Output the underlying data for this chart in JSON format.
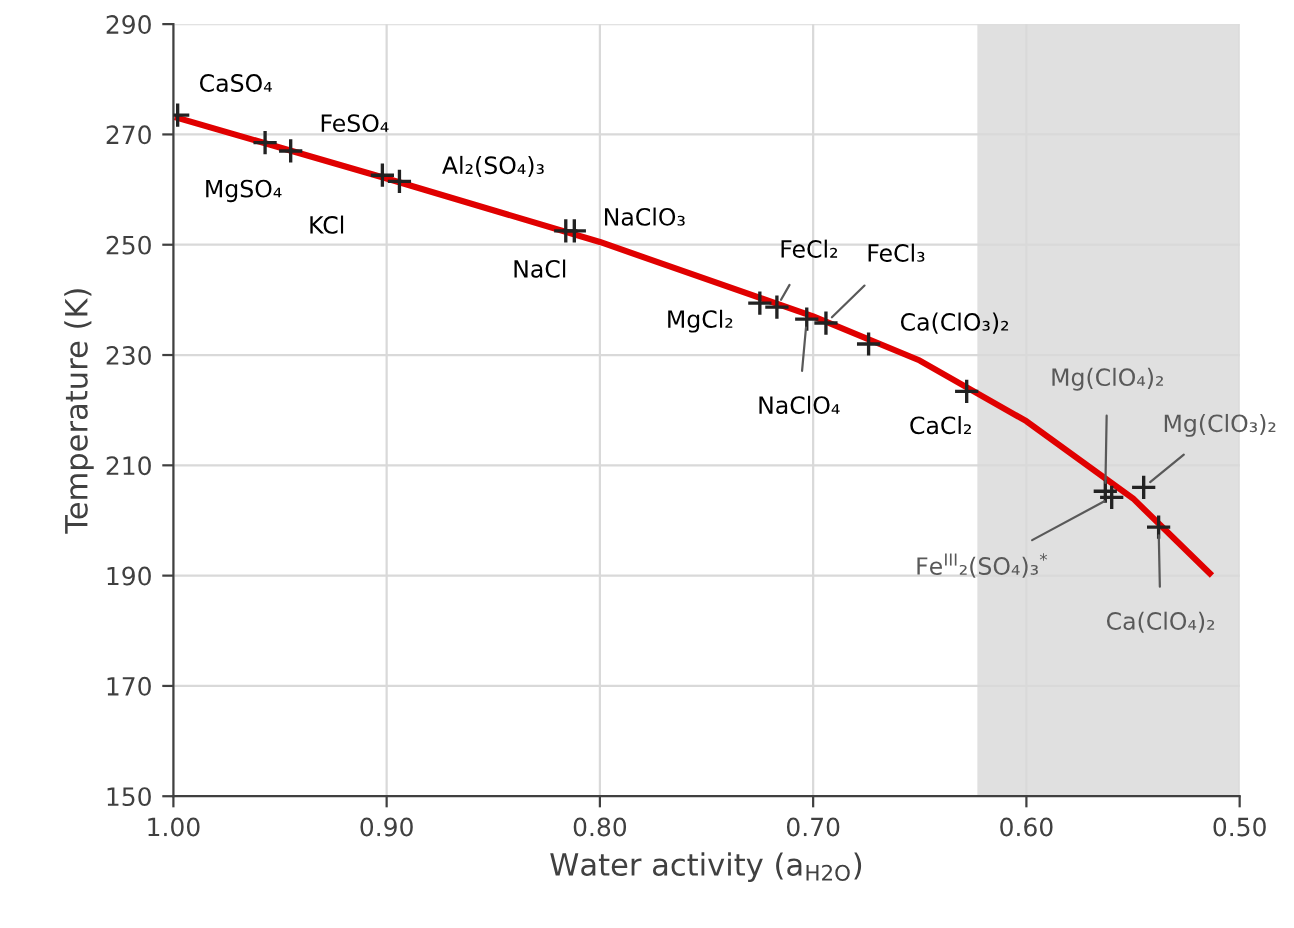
{
  "chart_data": {
    "type": "line",
    "xlabel": "Water activity (a$_{H2O}$)",
    "ylabel": "Temperature (K)",
    "xlim": [
      1.0,
      0.5
    ],
    "xticks": [
      {
        "value": 1.0,
        "label": "1.00"
      },
      {
        "value": 0.9,
        "label": "0.90"
      },
      {
        "value": 0.8,
        "label": "0.80"
      },
      {
        "value": 0.7,
        "label": "0.70"
      },
      {
        "value": 0.6,
        "label": "0.60"
      },
      {
        "value": 0.5,
        "label": "0.50"
      }
    ],
    "ylim": [
      150,
      290
    ],
    "yticks": [
      150,
      170,
      190,
      210,
      230,
      250,
      270,
      290
    ],
    "grid": true,
    "bands": [
      {
        "axis": "x",
        "from": 0.623,
        "to": 0.5,
        "color": "#e0e0e0"
      }
    ],
    "series": [
      {
        "color": "#e00000",
        "marker": "none",
        "x": [
          0.998,
          0.9,
          0.8,
          0.7,
          0.65,
          0.6,
          0.55,
          0.514
        ],
        "values": [
          273,
          262,
          250.5,
          237,
          229,
          218,
          204,
          190.4
        ]
      },
      {
        "type": "scatter",
        "color": "#222222",
        "marker": "cross",
        "x": [
          0.998,
          0.957,
          0.945,
          0.902,
          0.894,
          0.816,
          0.812,
          0.725,
          0.717,
          0.703,
          0.694,
          0.674,
          0.628,
          0.563,
          0.545,
          0.56,
          0.538
        ],
        "values": [
          273.5,
          268.5,
          267,
          262.6,
          261.5,
          252.5,
          252.5,
          239.4,
          238.7,
          236.5,
          235.8,
          232,
          223.4,
          205.3,
          206.0,
          204.2,
          198.8
        ]
      }
    ],
    "annotations": [
      {
        "text": "CaSO₄",
        "x": 0.998,
        "y": 273.5
      },
      {
        "text": "MgSO₄",
        "x": 0.957,
        "y": 268.5
      },
      {
        "text": "KCl",
        "x": 0.945,
        "y": 267
      },
      {
        "text": "FeSO₄",
        "x": 0.902,
        "y": 262.6
      },
      {
        "text": "Al₂(SO₄)₃",
        "x": 0.894,
        "y": 261.5
      },
      {
        "text": "NaCl",
        "x": 0.816,
        "y": 252.5
      },
      {
        "text": "NaClO₃",
        "x": 0.812,
        "y": 252.5
      },
      {
        "text": "MgCl₂",
        "x": 0.725,
        "y": 239.4
      },
      {
        "text": "FeCl₂",
        "x": 0.717,
        "y": 238.7
      },
      {
        "text": "NaClO₄",
        "x": 0.703,
        "y": 236.5
      },
      {
        "text": "FeCl₃",
        "x": 0.694,
        "y": 235.8
      },
      {
        "text": "Ca(ClO₃)₂",
        "x": 0.674,
        "y": 232
      },
      {
        "text": "CaCl₂",
        "x": 0.628,
        "y": 223.4
      },
      {
        "text": "Mg(ClO₄)₂",
        "x": 0.563,
        "y": 205.3
      },
      {
        "text": "Mg(ClO₃)₂",
        "x": 0.545,
        "y": 206.0
      },
      {
        "text": "Fe$^{III}$₂(SO₄)₃$^{*}$",
        "x": 0.56,
        "y": 204.2
      },
      {
        "text": "Ca(ClO₄)₂",
        "x": 0.538,
        "y": 198.8
      }
    ]
  }
}
